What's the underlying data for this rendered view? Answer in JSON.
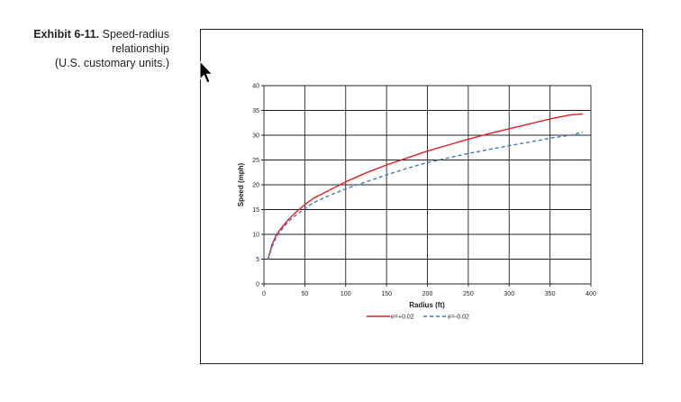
{
  "caption": {
    "label": "Exhibit 6-11.",
    "line1": "Speed-radius",
    "line2": "relationship",
    "line3": "(U.S.  customary units.)"
  },
  "chart_data": {
    "type": "line",
    "title": "",
    "xlabel": "Radius (ft)",
    "ylabel": "Speed (mph)",
    "xlim": [
      0,
      400
    ],
    "ylim": [
      0,
      40
    ],
    "xticks": [
      0,
      50,
      100,
      150,
      200,
      250,
      300,
      350,
      400
    ],
    "yticks": [
      0,
      5,
      10,
      15,
      20,
      25,
      30,
      35,
      40
    ],
    "grid": true,
    "legend_position": "bottom",
    "series": [
      {
        "name": "e=+0.02",
        "color": "#e31e24",
        "style": "solid",
        "x": [
          5,
          10,
          15,
          20,
          30,
          40,
          50,
          60,
          75,
          100,
          125,
          150,
          175,
          200,
          225,
          250,
          275,
          300,
          325,
          350,
          375,
          390
        ],
        "y": [
          5.0,
          8.0,
          9.8,
          11.0,
          13.0,
          14.6,
          16.0,
          17.2,
          18.5,
          20.6,
          22.4,
          24.0,
          25.4,
          26.8,
          28.0,
          29.2,
          30.3,
          31.3,
          32.3,
          33.3,
          34.1,
          34.3
        ]
      },
      {
        "name": "e=-0.02",
        "color": "#3a7bbf",
        "style": "dashed",
        "x": [
          5,
          10,
          15,
          20,
          30,
          40,
          50,
          60,
          75,
          100,
          125,
          150,
          175,
          200,
          225,
          250,
          275,
          300,
          325,
          350,
          375,
          390
        ],
        "y": [
          5.0,
          7.5,
          9.4,
          10.6,
          12.6,
          14.0,
          15.2,
          16.3,
          17.5,
          19.2,
          20.6,
          22.0,
          23.3,
          24.5,
          25.4,
          26.3,
          27.1,
          27.9,
          28.6,
          29.4,
          30.0,
          30.6
        ]
      }
    ]
  }
}
